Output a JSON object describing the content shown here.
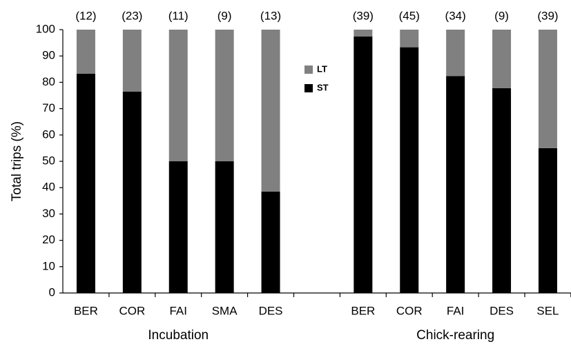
{
  "chart_data": {
    "type": "stacked-bar",
    "y_label": "Total trips (%)",
    "categories": [
      "BER",
      "COR",
      "FAI",
      "SMA",
      "DES",
      null,
      "BER",
      "COR",
      "FAI",
      "DES",
      "SEL"
    ],
    "group_labels": [
      "Incubation",
      "Chick-rearing"
    ],
    "n_labels": [
      "(12)",
      "(23)",
      "(11)",
      "(9)",
      "(13)",
      null,
      "(39)",
      "(45)",
      "(34)",
      "(9)",
      "(39)"
    ],
    "series": [
      {
        "name": "ST",
        "color": "#000000",
        "values": [
          83.3,
          76.5,
          50,
          50,
          38.5,
          null,
          97.4,
          93.3,
          82.4,
          77.8,
          55
        ]
      },
      {
        "name": "LT",
        "color": "#808080",
        "values": [
          16.7,
          23.5,
          50,
          50,
          61.5,
          null,
          2.6,
          6.7,
          17.6,
          22.2,
          45
        ]
      }
    ],
    "ylim": [
      0,
      100
    ],
    "yticks": [
      0,
      10,
      20,
      30,
      40,
      50,
      60,
      70,
      80,
      90,
      100
    ],
    "grid": false
  }
}
